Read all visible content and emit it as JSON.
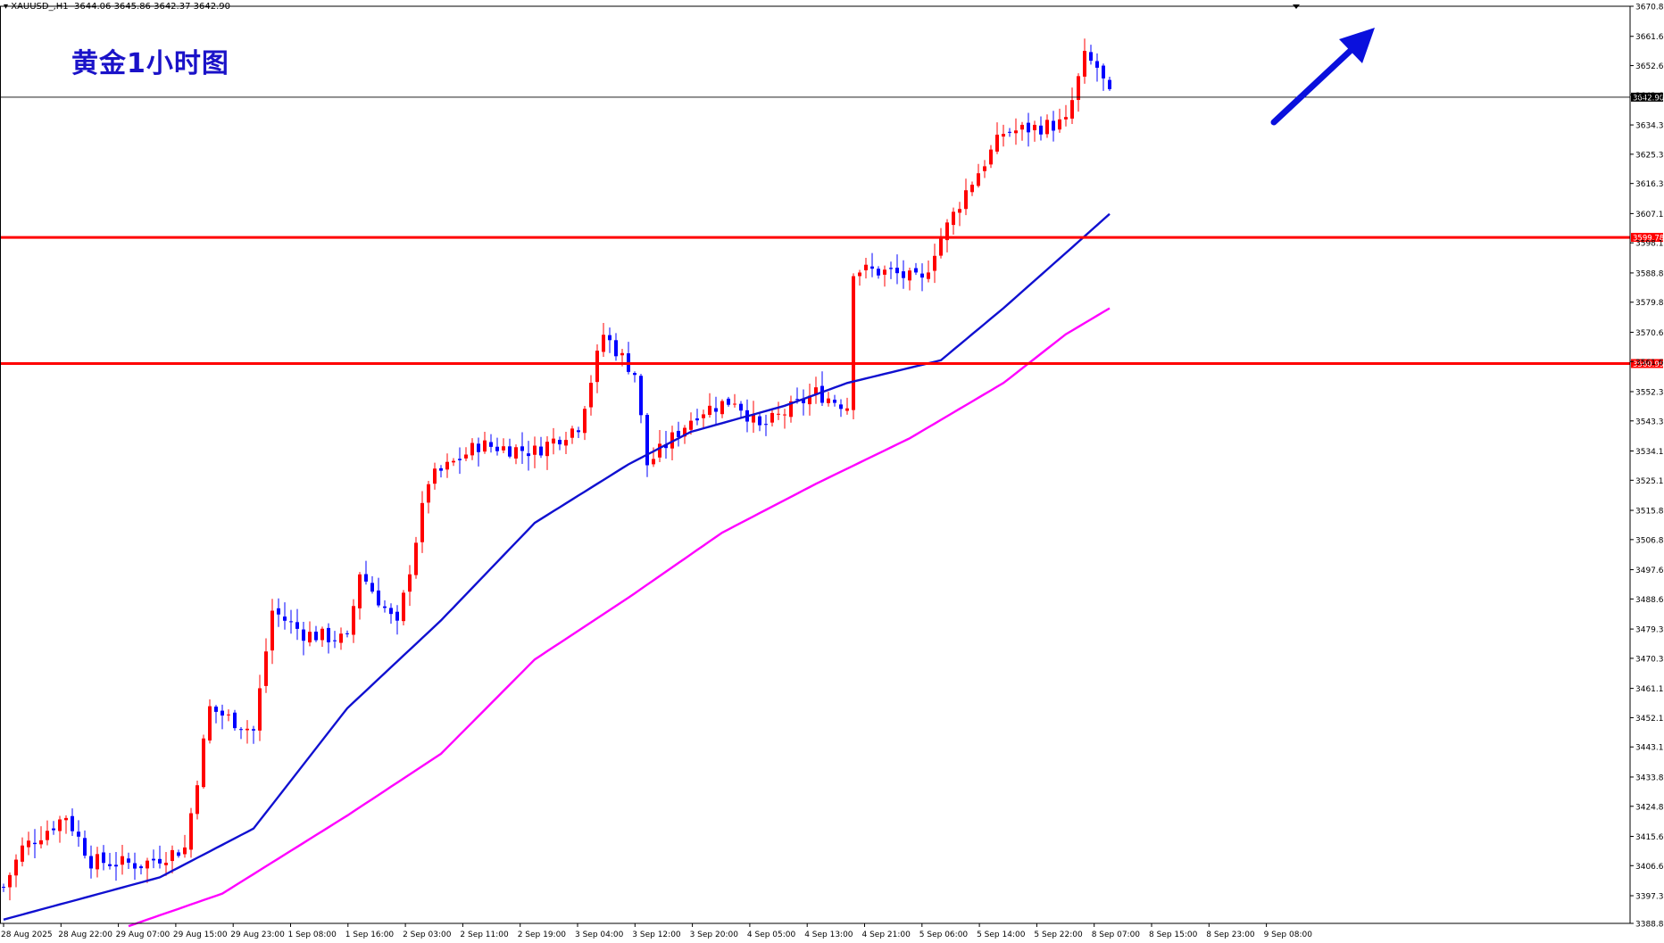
{
  "header": {
    "symbol_timeframe": "XAUUSD_,H1",
    "ohlc": "3644.06 3645.86 3642.37 3642.90"
  },
  "overlay_title": "黄金1小时图",
  "colors": {
    "bull": "#ff0000",
    "bear": "#0000ff",
    "ma_fast": "#1010d0",
    "ma_slow": "#ff00ff",
    "level": "#ff0000",
    "arrow": "#0a10dd",
    "bid_tag_bg": "#000000",
    "level_tag_bg": "#ff0000"
  },
  "chart_data": {
    "type": "candlestick",
    "ylim": [
      3388.85,
      3670.85
    ],
    "yticks": [
      "3670.85",
      "3661.60",
      "3652.60",
      "3643.60",
      "3634.35",
      "3625.35",
      "3616.35",
      "3607.10",
      "3598.10",
      "3588.85",
      "3579.85",
      "3570.60",
      "3561.60",
      "3552.35",
      "3543.35",
      "3534.10",
      "3525.10",
      "3515.85",
      "3506.85",
      "3497.60",
      "3488.60",
      "3479.35",
      "3470.35",
      "3461.10",
      "3452.10",
      "3443.10",
      "3433.85",
      "3424.85",
      "3415.60",
      "3406.60",
      "3397.35",
      "3388.85"
    ],
    "xticks": [
      "28 Aug 2025",
      "28 Aug 22:00",
      "29 Aug 07:00",
      "29 Aug 15:00",
      "29 Aug 23:00",
      "1 Sep 08:00",
      "1 Sep 16:00",
      "2 Sep 03:00",
      "2 Sep 11:00",
      "2 Sep 19:00",
      "3 Sep 04:00",
      "3 Sep 12:00",
      "3 Sep 20:00",
      "4 Sep 05:00",
      "4 Sep 13:00",
      "4 Sep 21:00",
      "5 Sep 06:00",
      "5 Sep 14:00",
      "5 Sep 22:00",
      "8 Sep 07:00",
      "8 Sep 15:00",
      "8 Sep 23:00",
      "9 Sep 08:00"
    ],
    "levels": [
      {
        "value": 3599.78,
        "label": "3599.78"
      },
      {
        "value": 3560.99,
        "label": "3560.99"
      }
    ],
    "bid": {
      "value": 3642.9,
      "label": "3642.90"
    },
    "close_anchors": [
      [
        0,
        3400
      ],
      [
        3,
        3412
      ],
      [
        10,
        3422
      ],
      [
        14,
        3408
      ],
      [
        22,
        3407
      ],
      [
        29,
        3412
      ],
      [
        33,
        3455
      ],
      [
        40,
        3448
      ],
      [
        43,
        3485
      ],
      [
        48,
        3478
      ],
      [
        55,
        3476
      ],
      [
        57,
        3497
      ],
      [
        63,
        3480
      ],
      [
        68,
        3525
      ],
      [
        76,
        3536
      ],
      [
        85,
        3534
      ],
      [
        92,
        3542
      ],
      [
        96,
        3570
      ],
      [
        101,
        3558
      ],
      [
        103,
        3530
      ],
      [
        111,
        3546
      ],
      [
        117,
        3550
      ],
      [
        121,
        3541
      ],
      [
        130,
        3552
      ],
      [
        135,
        3548
      ],
      [
        136,
        3590
      ],
      [
        142,
        3589
      ],
      [
        147,
        3586
      ],
      [
        149,
        3596
      ],
      [
        154,
        3614
      ],
      [
        160,
        3632
      ],
      [
        170,
        3635
      ],
      [
        173,
        3655
      ],
      [
        175,
        3652
      ],
      [
        177,
        3643
      ]
    ],
    "candle_count": 178,
    "series": [
      {
        "name": "",
        "type": "moving-average",
        "color": "#1010d0",
        "values_anchors": [
          [
            0,
            3390
          ],
          [
            25,
            3403
          ],
          [
            40,
            3418
          ],
          [
            55,
            3455
          ],
          [
            70,
            3482
          ],
          [
            85,
            3512
          ],
          [
            100,
            3530
          ],
          [
            110,
            3540
          ],
          [
            125,
            3548
          ],
          [
            135,
            3555
          ],
          [
            150,
            3562
          ],
          [
            160,
            3578
          ],
          [
            170,
            3595
          ],
          [
            177,
            3607
          ]
        ]
      },
      {
        "name": "",
        "type": "moving-average",
        "color": "#ff00ff",
        "values_anchors": [
          [
            20,
            3388
          ],
          [
            35,
            3398
          ],
          [
            55,
            3422
          ],
          [
            70,
            3441
          ],
          [
            85,
            3470
          ],
          [
            100,
            3489
          ],
          [
            115,
            3509
          ],
          [
            130,
            3524
          ],
          [
            145,
            3538
          ],
          [
            160,
            3555
          ],
          [
            170,
            3570
          ],
          [
            177,
            3578
          ]
        ]
      }
    ]
  }
}
